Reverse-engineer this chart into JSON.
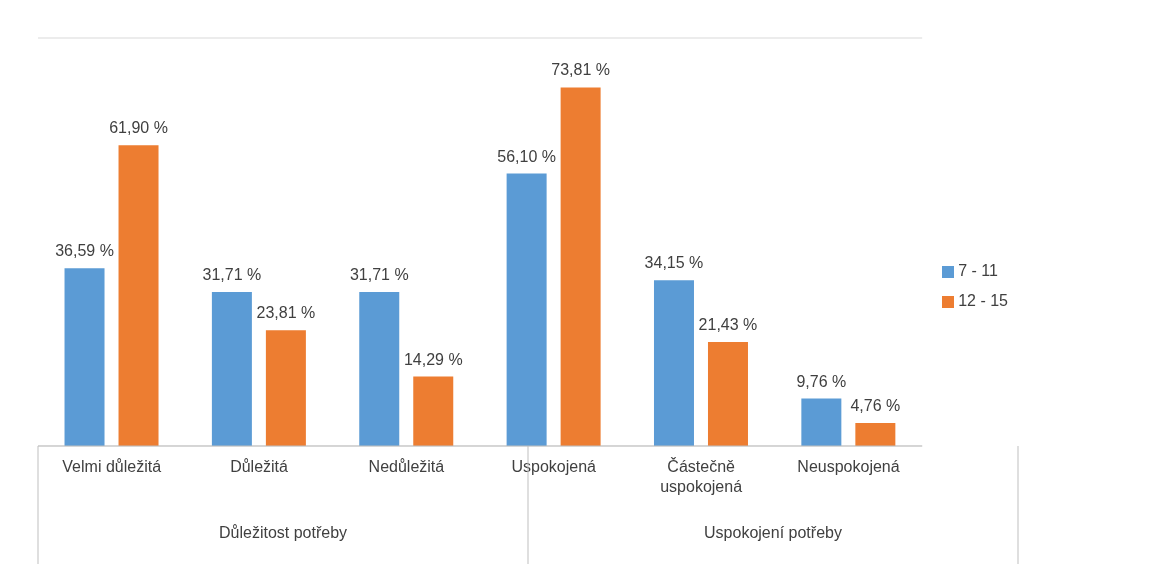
{
  "chart_data": {
    "type": "bar",
    "categories": [
      "Velmi důležitá",
      "Důležitá",
      "Nedůležitá",
      "Uspokojená",
      "Částečně uspokojená",
      "Neuspokojená"
    ],
    "series": [
      {
        "name": "7 - 11",
        "color": "#5b9bd5",
        "values": [
          36.59,
          31.71,
          31.71,
          56.1,
          34.15,
          9.76
        ],
        "value_labels": [
          "36,59 %",
          "31,71 %",
          "31,71 %",
          "56,10 %",
          "34,15 %",
          "9,76 %"
        ]
      },
      {
        "name": "12 - 15",
        "color": "#ed7d31",
        "values": [
          61.9,
          23.81,
          14.29,
          73.81,
          21.43,
          4.76
        ],
        "value_labels": [
          "61,90 %",
          "23,81 %",
          "14,29 %",
          "73,81 %",
          "21,43 %",
          "4,76 %"
        ]
      }
    ],
    "annotations": [
      "Důležitost potřeby",
      "Uspokojení potřeby"
    ],
    "ylim": [
      0,
      84
    ],
    "tick_labels": "x",
    "grid": "y",
    "legend": "right"
  }
}
